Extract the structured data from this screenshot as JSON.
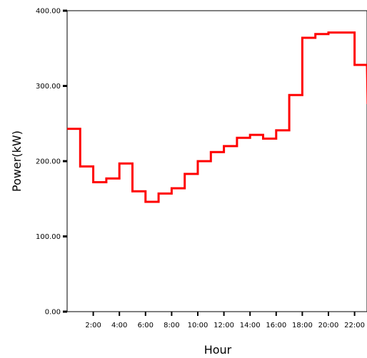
{
  "chart_data": {
    "type": "line",
    "step": true,
    "title": "",
    "xlabel": "Hour",
    "ylabel": "Power(kW)",
    "xlim": [
      0,
      23
    ],
    "ylim": [
      0,
      400
    ],
    "x_ticks": [
      {
        "value": 2,
        "label": "2:00"
      },
      {
        "value": 4,
        "label": "4:00"
      },
      {
        "value": 6,
        "label": "6:00"
      },
      {
        "value": 8,
        "label": "8:00"
      },
      {
        "value": 10,
        "label": "10:00"
      },
      {
        "value": 12,
        "label": "12:00"
      },
      {
        "value": 14,
        "label": "14:00"
      },
      {
        "value": 16,
        "label": "16:00"
      },
      {
        "value": 18,
        "label": "18:00"
      },
      {
        "value": 20,
        "label": "20:00"
      },
      {
        "value": 22,
        "label": "22:00"
      }
    ],
    "y_ticks": [
      {
        "value": 0,
        "label": "0.00"
      },
      {
        "value": 100,
        "label": "100.00"
      },
      {
        "value": 200,
        "label": "200.00"
      },
      {
        "value": 300,
        "label": "300.00"
      },
      {
        "value": 400,
        "label": "400.00"
      }
    ],
    "grid": false,
    "legend": "none",
    "series": [
      {
        "color": "#ff0000",
        "x": [
          0,
          1,
          2,
          3,
          4,
          5,
          6,
          7,
          8,
          9,
          10,
          11,
          12,
          13,
          14,
          15,
          16,
          17,
          18,
          19,
          20,
          21,
          22,
          23
        ],
        "values": [
          243,
          193,
          172,
          177,
          197,
          160,
          146,
          157,
          164,
          183,
          200,
          212,
          220,
          231,
          235,
          230,
          241,
          288,
          364,
          369,
          371,
          371,
          328,
          276
        ]
      }
    ]
  }
}
